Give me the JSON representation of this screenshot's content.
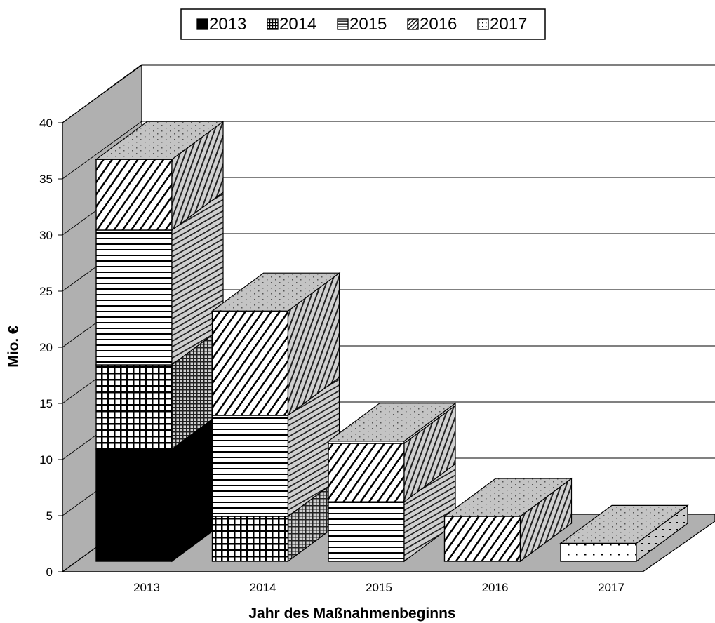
{
  "chart_data": {
    "type": "bar",
    "stacked": true,
    "three_d": true,
    "ylabel": "Mio. €",
    "xlabel": "Jahr des Maßnahmenbeginns",
    "ylim": [
      0,
      40
    ],
    "yticks": [
      "0",
      "5",
      "10",
      "15",
      "20",
      "25",
      "30",
      "35",
      "40"
    ],
    "categories": [
      "2013",
      "2014",
      "2015",
      "2016",
      "2017"
    ],
    "legend_position": "top",
    "grid": true,
    "series": [
      {
        "name": "2013",
        "pattern": "solid-black",
        "values": [
          10,
          0,
          0,
          0,
          0
        ]
      },
      {
        "name": "2014",
        "pattern": "grid",
        "values": [
          7.5,
          4,
          0,
          0,
          0
        ]
      },
      {
        "name": "2015",
        "pattern": "horizontal-lines",
        "values": [
          12,
          9,
          5.3,
          0,
          0
        ]
      },
      {
        "name": "2016",
        "pattern": "diagonal-lines",
        "values": [
          6.3,
          9.3,
          5.2,
          4,
          0
        ]
      },
      {
        "name": "2017",
        "pattern": "dots",
        "values": [
          0,
          0,
          0.2,
          0,
          1.6
        ]
      }
    ]
  }
}
